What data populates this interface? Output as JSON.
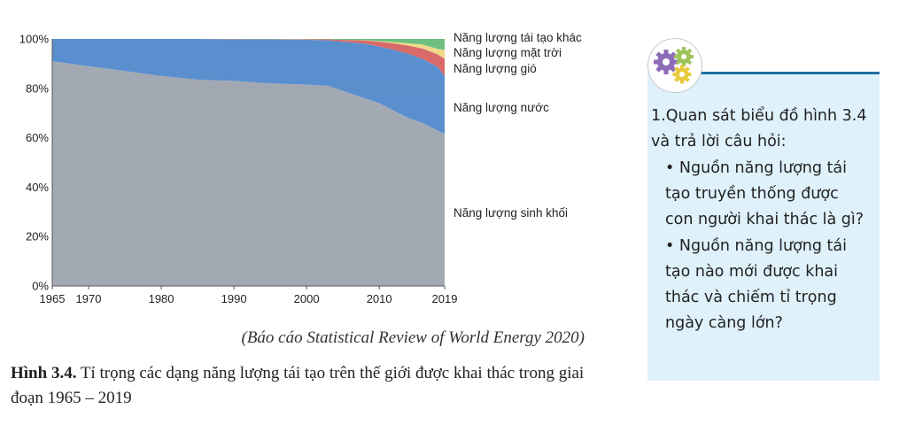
{
  "chart_data": {
    "type": "area",
    "stacked": true,
    "normalized": true,
    "x": [
      1965,
      1970,
      1975,
      1980,
      1985,
      1990,
      1995,
      2000,
      2003,
      2005,
      2008,
      2010,
      2012,
      2014,
      2016,
      2018,
      2019
    ],
    "x_tick_labels": [
      "1965",
      "1970",
      "1980",
      "1990",
      "2000",
      "2010",
      "2019"
    ],
    "x_tick_values": [
      1965,
      1970,
      1980,
      1990,
      2000,
      2010,
      2019
    ],
    "y_tick_labels": [
      "0%",
      "20%",
      "40%",
      "60%",
      "80%",
      "100%"
    ],
    "y_tick_values": [
      0,
      20,
      40,
      60,
      80,
      100
    ],
    "ylim": [
      0,
      100
    ],
    "series": [
      {
        "name": "Năng lượng sinh khối",
        "color": "#a3a9b3",
        "values": [
          91.0,
          89.0,
          87.0,
          85.0,
          83.5,
          83.0,
          82.0,
          81.5,
          81.0,
          79.0,
          76.0,
          74.0,
          71.0,
          68.0,
          66.0,
          63.0,
          61.5
        ]
      },
      {
        "name": "Năng lượng nước",
        "color": "#5a8fcf",
        "values": [
          9.0,
          11.0,
          13.0,
          15.0,
          16.5,
          16.9,
          17.8,
          18.2,
          18.4,
          19.9,
          22.1,
          22.9,
          24.6,
          26.0,
          25.9,
          25.8,
          23.5
        ]
      },
      {
        "name": "Năng lượng gió",
        "color": "#d96a6a",
        "values": [
          0,
          0,
          0,
          0,
          0,
          0.1,
          0.1,
          0.2,
          0.4,
          0.7,
          1.3,
          2.0,
          2.6,
          3.3,
          4.2,
          5.0,
          7.0
        ]
      },
      {
        "name": "Năng lượng mặt trời",
        "color": "#f1d98a",
        "values": [
          0,
          0,
          0,
          0,
          0,
          0,
          0,
          0,
          0,
          0,
          0.1,
          0.2,
          0.5,
          0.9,
          1.6,
          2.2,
          3.5
        ]
      },
      {
        "name": "Năng lượng tái tạo khác",
        "color": "#6fbf7f",
        "values": [
          0,
          0,
          0,
          0,
          0,
          0,
          0.1,
          0.1,
          0.2,
          0.4,
          0.5,
          0.9,
          1.3,
          1.8,
          2.3,
          4.0,
          4.5
        ]
      }
    ],
    "legend_order": [
      "Năng lượng tái tạo khác",
      "Năng lượng mặt trời",
      "Năng lượng gió",
      "Năng lượng nước",
      "Năng lượng sinh khối"
    ]
  },
  "source_note": "(Báo cáo Statistical Review of World Energy 2020)",
  "caption": {
    "label": "Hình 3.4.",
    "text": "Tỉ trọng các dạng năng lượng tái tạo trên thế giới được khai thác trong giai đoạn 1965 – 2019"
  },
  "question_box": {
    "icon": "gears-icon",
    "intro": "1.Quan sát biểu đồ hình 3.4 và trả lời câu hỏi:",
    "bullets": [
      "Nguồn năng lượng tái tạo truyền thống được con người khai thác là gì?",
      "Nguồn năng lượng tái tạo nào mới được khai thác và chiếm tỉ trọng ngày càng lớn?"
    ],
    "bullet_symbol": "•"
  }
}
